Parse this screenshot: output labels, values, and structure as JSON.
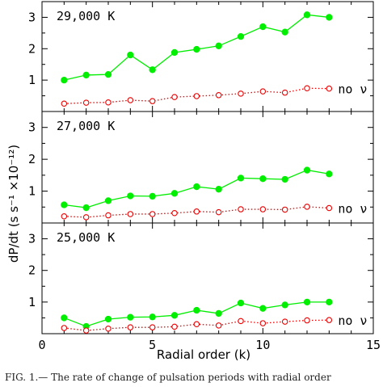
{
  "chart_data": {
    "type": "line",
    "xlabel": "Radial order (k)",
    "ylabel": "dP/dt (s s⁻¹ ×10⁻¹²)",
    "xlim": [
      0,
      15
    ],
    "xticks": [
      0,
      5,
      10,
      15
    ],
    "ylim": [
      0,
      3.5
    ],
    "yticks": [
      1,
      2,
      3
    ],
    "x": [
      1,
      2,
      3,
      4,
      5,
      6,
      7,
      8,
      9,
      10,
      11,
      12,
      13
    ],
    "panels": [
      {
        "label": "29,000 K",
        "series": [
          {
            "values": [
              1.0,
              1.16,
              1.18,
              1.8,
              1.33,
              1.88,
              1.98,
              2.09,
              2.39,
              2.7,
              2.53,
              3.08,
              3.0
            ],
            "color": "#00ee00",
            "marker": "filled-circle",
            "line": "solid"
          },
          {
            "name": "no ν",
            "values": [
              0.25,
              0.28,
              0.29,
              0.36,
              0.33,
              0.46,
              0.49,
              0.52,
              0.57,
              0.64,
              0.6,
              0.74,
              0.73
            ],
            "color": "#ee0000",
            "marker": "open-circle",
            "line": "dotted"
          }
        ]
      },
      {
        "label": "27,000 K",
        "series": [
          {
            "values": [
              0.57,
              0.48,
              0.7,
              0.85,
              0.84,
              0.93,
              1.14,
              1.06,
              1.41,
              1.39,
              1.37,
              1.66,
              1.54
            ],
            "color": "#00ee00",
            "marker": "filled-circle",
            "line": "solid"
          },
          {
            "name": "no ν",
            "values": [
              0.21,
              0.18,
              0.24,
              0.28,
              0.28,
              0.31,
              0.36,
              0.34,
              0.43,
              0.43,
              0.42,
              0.51,
              0.47
            ],
            "color": "#ee0000",
            "marker": "open-circle",
            "line": "dotted"
          }
        ]
      },
      {
        "label": "25,000 K",
        "series": [
          {
            "values": [
              0.5,
              0.23,
              0.46,
              0.52,
              0.53,
              0.58,
              0.74,
              0.64,
              0.97,
              0.8,
              0.91,
              1.0,
              1.0
            ],
            "color": "#00ee00",
            "marker": "filled-circle",
            "line": "solid"
          },
          {
            "name": "no ν",
            "values": [
              0.18,
              0.1,
              0.16,
              0.2,
              0.2,
              0.22,
              0.3,
              0.26,
              0.4,
              0.33,
              0.38,
              0.42,
              0.43
            ],
            "color": "#ee0000",
            "marker": "open-circle",
            "line": "dotted"
          }
        ]
      }
    ]
  },
  "caption": "FIG. 1.— The rate of change of pulsation periods with radial order"
}
